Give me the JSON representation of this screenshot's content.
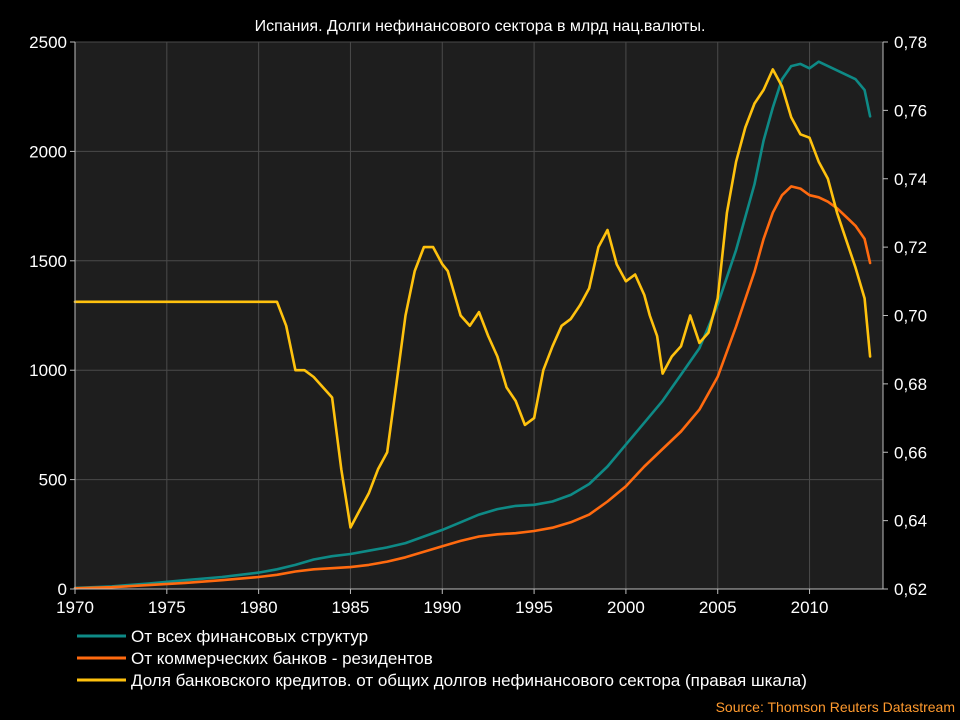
{
  "chart_data": {
    "type": "line",
    "title": "Испания. Долги нефинансового сектора в млрд нац.валюты.",
    "source": "Source: Thomson Reuters Datastream",
    "xlim": [
      1970,
      2014
    ],
    "x_ticks": [
      "1970",
      "1975",
      "1980",
      "1985",
      "1990",
      "1995",
      "2000",
      "2005",
      "2010"
    ],
    "y_left_lim": [
      0,
      2500
    ],
    "y_left_ticks": [
      "0",
      "500",
      "1000",
      "1500",
      "2000",
      "2500"
    ],
    "y_right_lim": [
      0.62,
      0.78
    ],
    "y_right_ticks": [
      "0,62",
      "0,64",
      "0,66",
      "0,68",
      "0,70",
      "0,72",
      "0,74",
      "0,76",
      "0,78"
    ],
    "grid": true,
    "legend_position": "bottom",
    "series": [
      {
        "name": "От всех финансовых структур",
        "axis": "left",
        "color": "#0e8a86",
        "x": [
          1970,
          1972,
          1974,
          1976,
          1978,
          1980,
          1981,
          1982,
          1983,
          1984,
          1985,
          1986,
          1987,
          1988,
          1989,
          1990,
          1991,
          1992,
          1993,
          1994,
          1995,
          1996,
          1997,
          1998,
          1999,
          2000,
          2001,
          2002,
          2003,
          2004,
          2005,
          2006,
          2007,
          2007.5,
          2008,
          2008.5,
          2009,
          2009.5,
          2010,
          2010.5,
          2011,
          2011.5,
          2012,
          2012.5,
          2013,
          2013.3
        ],
        "y": [
          5,
          12,
          25,
          40,
          55,
          75,
          90,
          110,
          135,
          150,
          160,
          175,
          190,
          210,
          240,
          270,
          305,
          340,
          365,
          380,
          385,
          400,
          430,
          480,
          560,
          660,
          760,
          860,
          980,
          1100,
          1300,
          1550,
          1850,
          2050,
          2200,
          2330,
          2390,
          2400,
          2380,
          2410,
          2390,
          2370,
          2350,
          2330,
          2280,
          2160
        ]
      },
      {
        "name": "От коммерческих банков - резидентов",
        "axis": "left",
        "color": "#ff6a0f",
        "x": [
          1970,
          1972,
          1974,
          1976,
          1978,
          1980,
          1981,
          1982,
          1983,
          1984,
          1985,
          1986,
          1987,
          1988,
          1989,
          1990,
          1991,
          1992,
          1993,
          1994,
          1995,
          1996,
          1997,
          1998,
          1999,
          2000,
          2001,
          2002,
          2003,
          2004,
          2005,
          2006,
          2007,
          2007.5,
          2008,
          2008.5,
          2009,
          2009.5,
          2010,
          2010.5,
          2011,
          2011.5,
          2012,
          2012.5,
          2013,
          2013.3
        ],
        "y": [
          3,
          8,
          18,
          28,
          40,
          55,
          65,
          80,
          90,
          95,
          100,
          110,
          125,
          145,
          170,
          195,
          220,
          240,
          250,
          255,
          265,
          280,
          305,
          340,
          400,
          470,
          560,
          640,
          720,
          820,
          970,
          1200,
          1450,
          1600,
          1720,
          1800,
          1840,
          1830,
          1800,
          1790,
          1770,
          1740,
          1700,
          1660,
          1600,
          1490
        ]
      },
      {
        "name": "Доля банковского кредитов. от общих долгов нефинансового сектора (правая шкала)",
        "axis": "right",
        "color": "#ffc20e",
        "x": [
          1970,
          1975,
          1980,
          1981,
          1981.5,
          1982,
          1982.5,
          1983,
          1983.5,
          1984,
          1984.5,
          1985,
          1985.5,
          1986,
          1986.5,
          1987,
          1987.5,
          1988,
          1988.5,
          1989,
          1989.5,
          1990,
          1990.3,
          1991,
          1991.5,
          1992,
          1992.5,
          1993,
          1993.5,
          1994,
          1994.5,
          1995,
          1995.5,
          1996,
          1996.5,
          1997,
          1997.5,
          1998,
          1998.5,
          1999,
          1999.5,
          2000,
          2000.5,
          2001,
          2001.3,
          2001.7,
          2002,
          2002.5,
          2003,
          2003.5,
          2004,
          2004.5,
          2005,
          2005.5,
          2006,
          2006.5,
          2007,
          2007.5,
          2008,
          2008.5,
          2009,
          2009.5,
          2010,
          2010.5,
          2011,
          2011.5,
          2012,
          2012.5,
          2013,
          2013.3
        ],
        "y": [
          0.704,
          0.704,
          0.704,
          0.704,
          0.697,
          0.684,
          0.684,
          0.682,
          0.679,
          0.676,
          0.655,
          0.638,
          0.643,
          0.648,
          0.655,
          0.66,
          0.68,
          0.7,
          0.713,
          0.72,
          0.72,
          0.715,
          0.713,
          0.7,
          0.697,
          0.701,
          0.694,
          0.688,
          0.679,
          0.675,
          0.668,
          0.67,
          0.684,
          0.691,
          0.697,
          0.699,
          0.703,
          0.708,
          0.72,
          0.725,
          0.715,
          0.71,
          0.712,
          0.706,
          0.7,
          0.694,
          0.683,
          0.688,
          0.691,
          0.7,
          0.692,
          0.695,
          0.705,
          0.73,
          0.745,
          0.755,
          0.762,
          0.766,
          0.772,
          0.767,
          0.758,
          0.753,
          0.752,
          0.745,
          0.74,
          0.73,
          0.722,
          0.714,
          0.705,
          0.688
        ]
      }
    ]
  }
}
